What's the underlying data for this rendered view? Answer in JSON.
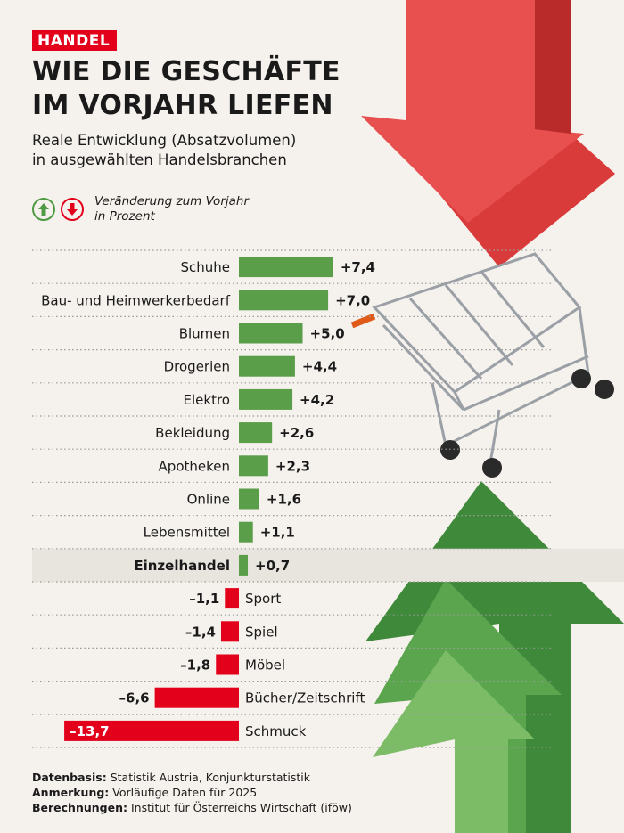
{
  "tag": "HANDEL",
  "title_line1": "WIE DIE GESCHÄFTE",
  "title_line2": "IM VORJAHR LIEFEN",
  "subtitle_line1": "Reale Entwicklung (Absatzvolumen)",
  "subtitle_line2": "in ausgewählten Handelsbranchen",
  "legend_line1": "Veränderung zum Vorjahr",
  "legend_line2": "in Prozent",
  "colors": {
    "positive": "#5a9e4a",
    "negative": "#e3001b",
    "highlight": "#e8e4de"
  },
  "chart_data": {
    "type": "bar",
    "orientation": "horizontal",
    "title": "Wie die Geschäfte im Vorjahr liefen",
    "unit": "Veränderung zum Vorjahr in Prozent",
    "categories": [
      "Schuhe",
      "Bau- und Heimwerkerbedarf",
      "Blumen",
      "Drogerien",
      "Elektro",
      "Bekleidung",
      "Apotheken",
      "Online",
      "Lebensmittel",
      "Einzelhandel",
      "Sport",
      "Spiel",
      "Möbel",
      "Bücher/Zeitschrift",
      "Schmuck"
    ],
    "values": [
      7.4,
      7.0,
      5.0,
      4.4,
      4.2,
      2.6,
      2.3,
      1.6,
      1.1,
      0.7,
      -1.1,
      -1.4,
      -1.8,
      -6.6,
      -13.7
    ],
    "labels": [
      "+7,4",
      "+7,0",
      "+5,0",
      "+4,4",
      "+4,2",
      "+2,6",
      "+2,3",
      "+1,6",
      "+1,1",
      "+0,7",
      "–1,1",
      "–1,4",
      "–1,8",
      "–6,6",
      "–13,7"
    ],
    "highlight": "Einzelhandel"
  },
  "footer": [
    {
      "key": "Datenbasis:",
      "value": "Statistik Austria, Konjunkturstatistik"
    },
    {
      "key": "Anmerkung:",
      "value": "Vorläufige Daten für 2025"
    },
    {
      "key": "Berechnungen:",
      "value": "Institut für Österreichs Wirtschaft (iföw)"
    }
  ]
}
